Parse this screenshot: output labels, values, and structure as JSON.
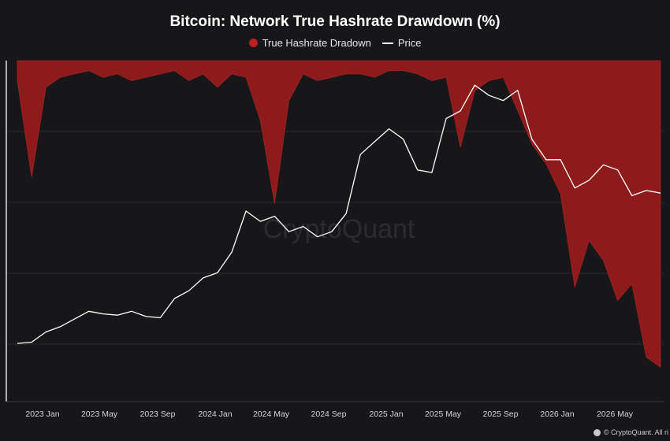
{
  "chart_data": {
    "type": "area",
    "title": "Bitcoin: Network True Hashrate Drawdown (%)",
    "watermark": "CryptoQuant",
    "footer": "© CryptoQuant. All ri",
    "x_tick_labels": [
      "2023 Jan",
      "2023 May",
      "2023 Sep",
      "2024 Jan",
      "2024 May",
      "2024 Sep",
      "2025 Jan",
      "2025 May",
      "2025 Sep",
      "2026 Jan",
      "2026 May"
    ],
    "grid": true,
    "legend_position": "top-center",
    "colors": {
      "drawdown": "#8e1b1b",
      "price": "#ffffff",
      "legend_dot": "#b8211f"
    },
    "series": [
      {
        "name": "True Hashrate Dradown",
        "type": "area",
        "ylim": [
          100,
          0
        ],
        "x": [
          "2022-11",
          "2022-12",
          "2023-01",
          "2023-02",
          "2023-03",
          "2023-04",
          "2023-05",
          "2023-06",
          "2023-07",
          "2023-08",
          "2023-09",
          "2023-10",
          "2023-11",
          "2023-12",
          "2024-01",
          "2024-02",
          "2024-03",
          "2024-04",
          "2024-05",
          "2024-06",
          "2024-07",
          "2024-08",
          "2024-09",
          "2024-10",
          "2024-11",
          "2024-12",
          "2025-01",
          "2025-02",
          "2025-03",
          "2025-04",
          "2025-05",
          "2025-06",
          "2025-07",
          "2025-08",
          "2025-09",
          "2025-10",
          "2025-11",
          "2025-12",
          "2026-01",
          "2026-02",
          "2026-03",
          "2026-04",
          "2026-05",
          "2026-06",
          "2026-07",
          "2026-08"
        ],
        "values": [
          6,
          35,
          8,
          5,
          4,
          3,
          5,
          4,
          6,
          5,
          4,
          3,
          6,
          4,
          8,
          4,
          5,
          18,
          43,
          12,
          4,
          6,
          5,
          4,
          4,
          5,
          3,
          3,
          4,
          6,
          5,
          26,
          9,
          6,
          5,
          15,
          25,
          31,
          40,
          68,
          54,
          60,
          72,
          67,
          89,
          92
        ]
      },
      {
        "name": "Price",
        "type": "line",
        "x": [
          "2022-11",
          "2022-12",
          "2023-01",
          "2023-02",
          "2023-03",
          "2023-04",
          "2023-05",
          "2023-06",
          "2023-07",
          "2023-08",
          "2023-09",
          "2023-10",
          "2023-11",
          "2023-12",
          "2024-01",
          "2024-02",
          "2024-03",
          "2024-04",
          "2024-05",
          "2024-06",
          "2024-07",
          "2024-08",
          "2024-09",
          "2024-10",
          "2024-11",
          "2024-12",
          "2025-01",
          "2025-02",
          "2025-03",
          "2025-04",
          "2025-05",
          "2025-06",
          "2025-07",
          "2025-08",
          "2025-09",
          "2025-10",
          "2025-11",
          "2025-12",
          "2026-01",
          "2026-02",
          "2026-03",
          "2026-04",
          "2026-05",
          "2026-06",
          "2026-07",
          "2026-08"
        ],
        "values": [
          16.5,
          17,
          21,
          23,
          26,
          29,
          28,
          27.5,
          29,
          27,
          26.5,
          34,
          37,
          42,
          44,
          52,
          68,
          64,
          66,
          60,
          62,
          58,
          60,
          67,
          90,
          95,
          100,
          96,
          84,
          83,
          104,
          107,
          117,
          113,
          111,
          115,
          96,
          88,
          88,
          77,
          80,
          86,
          84,
          74,
          76,
          75
        ]
      }
    ]
  }
}
